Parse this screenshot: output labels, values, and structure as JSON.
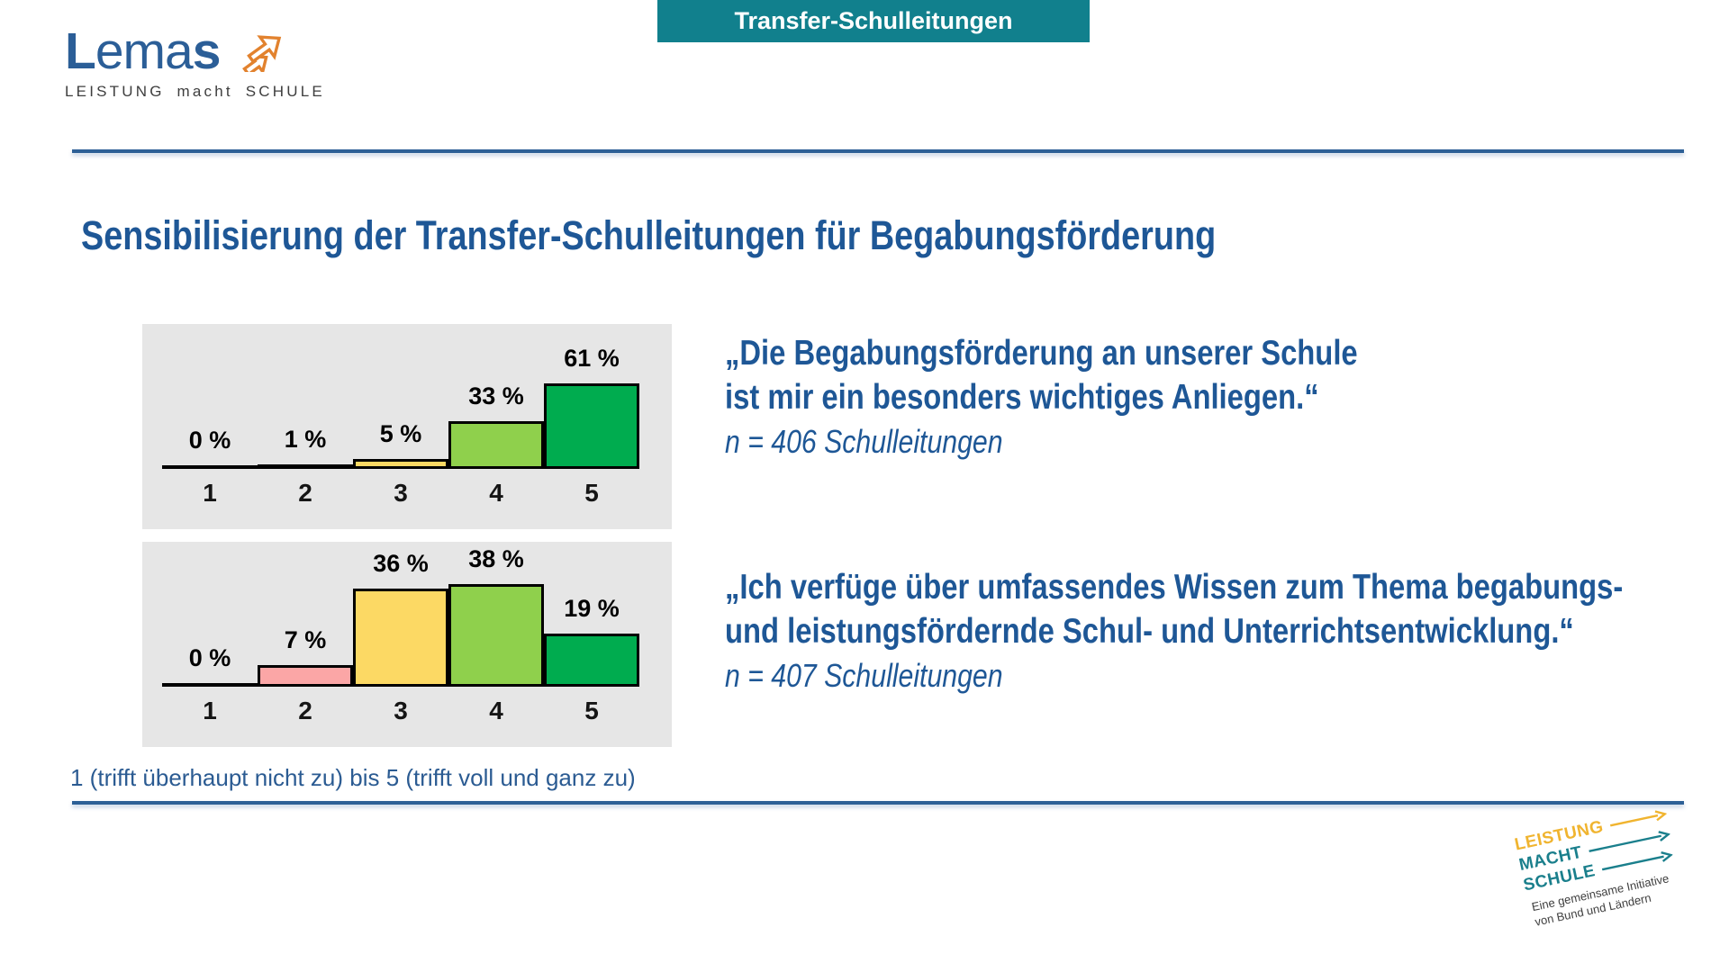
{
  "colors": {
    "teal": "#11808D",
    "blue": "#1E5796",
    "line-blue": "#2D6096",
    "chart-bg": "#E6E6E6",
    "logo-blue": "#2B5E97",
    "logo-orange": "#E2822E",
    "footer-yellow": "#F0B42F",
    "footer-teal": "#1A7F8C"
  },
  "header": {
    "banner_label": "Transfer-Schulleitungen"
  },
  "logo": {
    "word_l": "L",
    "word_ema": "ema",
    "word_s": "s",
    "subline": "LEISTUNG macht SCHULE"
  },
  "title": "Sensibilisierung der Transfer-Schulleitungen für Begabungsförderung",
  "chart_data": [
    {
      "type": "bar",
      "categories": [
        "1",
        "2",
        "3",
        "4",
        "5"
      ],
      "values": [
        0,
        1,
        5,
        33,
        61
      ],
      "labels": [
        "0 %",
        "1 %",
        "5 %",
        "33 %",
        "61 %"
      ],
      "bar_colors": [
        "#000000",
        "#000000",
        "#FCD964",
        "#8FD04C",
        "#00AC4F"
      ],
      "ylim": [
        0,
        105
      ],
      "grid": false,
      "legend": "none"
    },
    {
      "type": "bar",
      "categories": [
        "1",
        "2",
        "3",
        "4",
        "5"
      ],
      "values": [
        0,
        7,
        36,
        38,
        19
      ],
      "labels": [
        "0 %",
        "7 %",
        "36 %",
        "38 %",
        "19 %"
      ],
      "bar_colors": [
        "#000000",
        "#FBA6A6",
        "#FCD964",
        "#8FD04C",
        "#00AC4F"
      ],
      "ylim": [
        0,
        54
      ],
      "grid": false,
      "legend": "none"
    }
  ],
  "quotes": [
    {
      "line1": "„Die Begabungsförderung an unserer Schule",
      "line2": "ist mir ein besonders wichtiges Anliegen.“",
      "sample": "n = 406 Schulleitungen"
    },
    {
      "line1": "„Ich verfüge über umfassendes Wissen zum Thema begabungs-",
      "line2": "und leistungsfördernde Schul- und Unterrichtsentwicklung.“",
      "sample": "n = 407 Schulleitungen"
    }
  ],
  "scale_note": "1 (trifft überhaupt nicht zu) bis 5 (trifft voll und ganz zu)",
  "footer_logo": {
    "words": [
      "LEISTUNG",
      "MACHT",
      "SCHULE"
    ],
    "caption_line1": "Eine gemeinsame Initiative",
    "caption_line2": "von Bund und Ländern"
  }
}
